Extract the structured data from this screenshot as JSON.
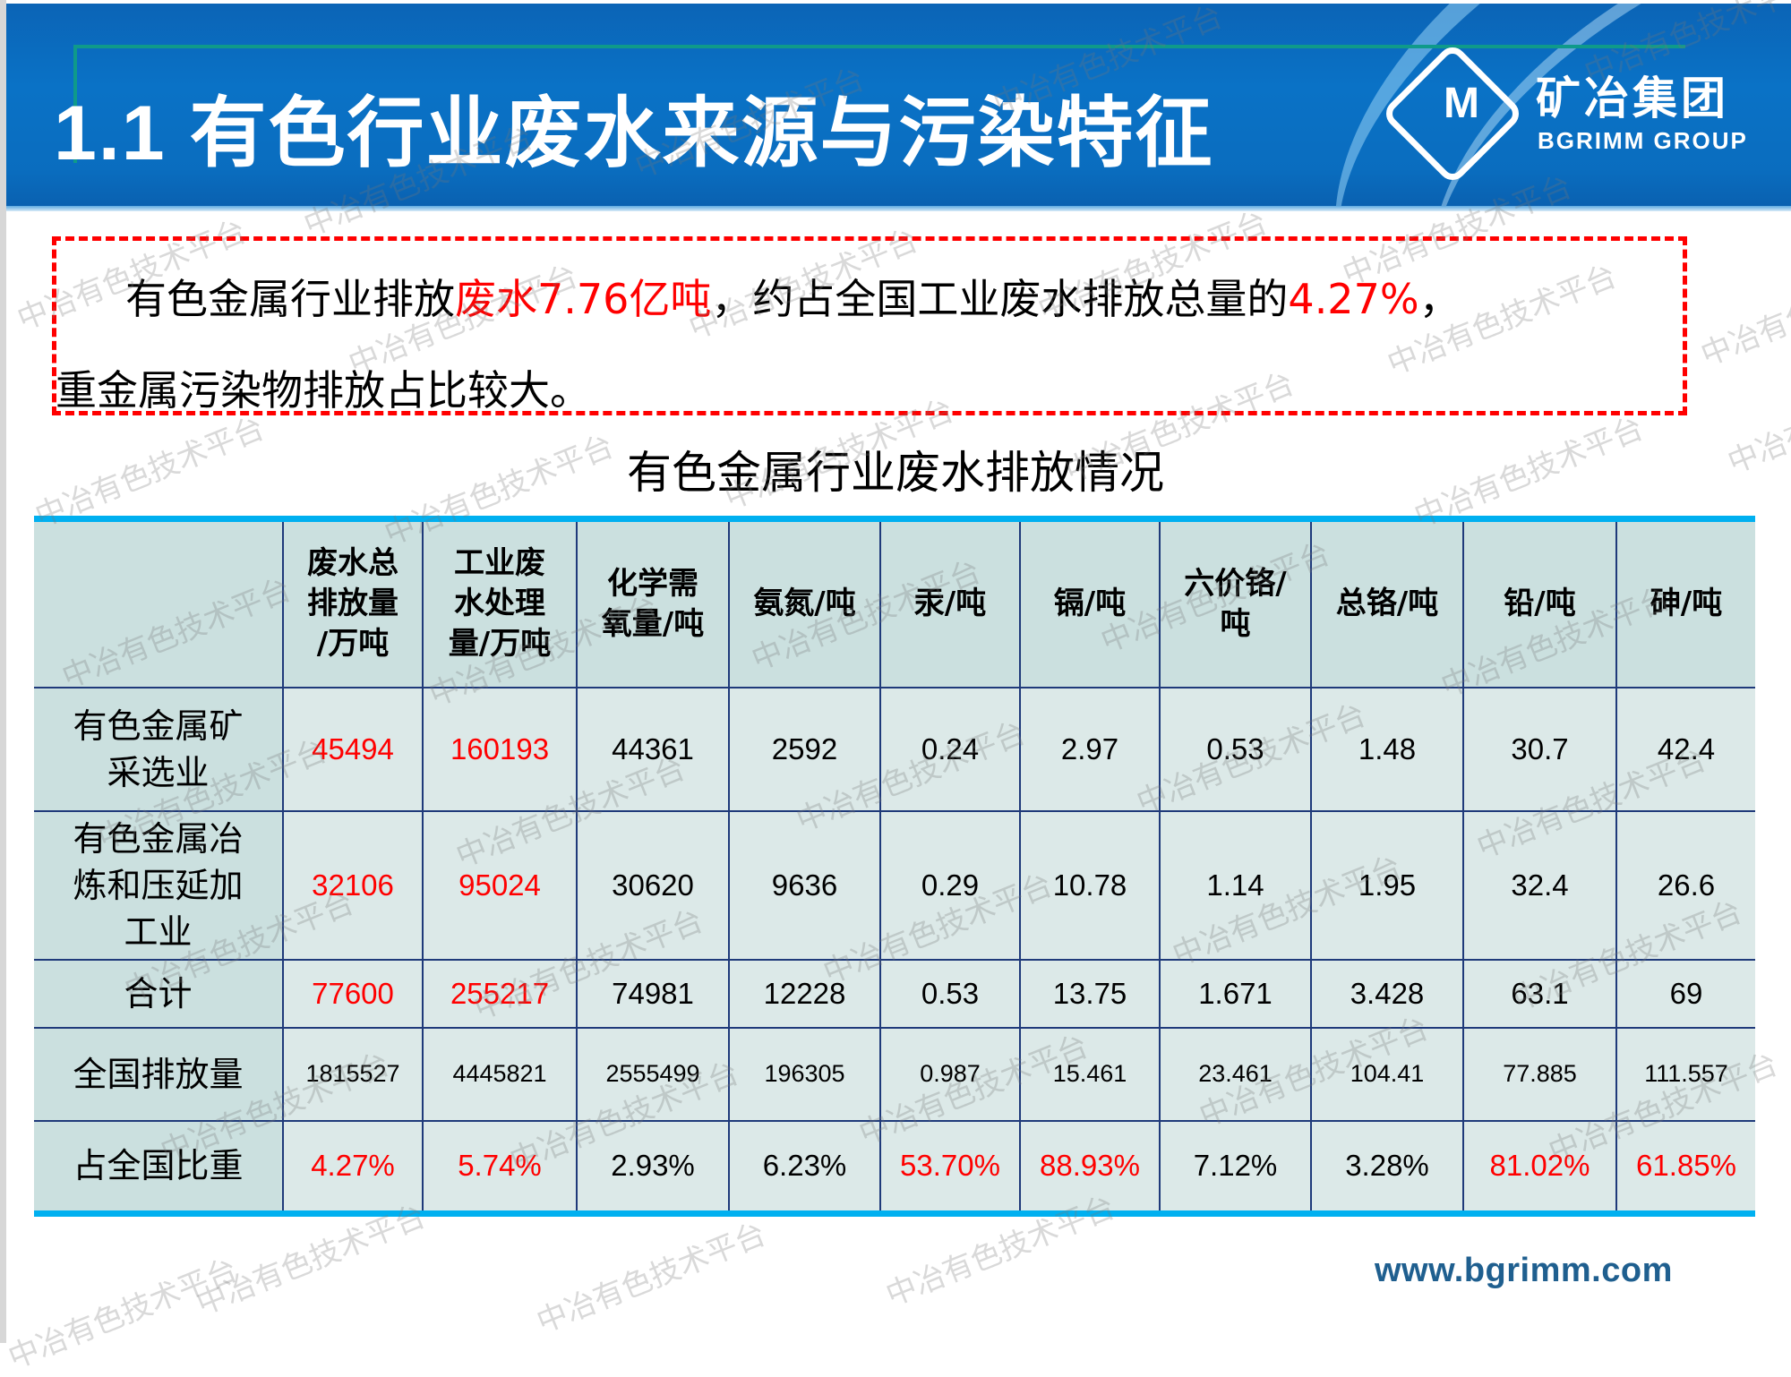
{
  "slide": {
    "title": "1.1 有色行业废水来源与污染特征",
    "logo": {
      "mark": "M",
      "name_cn": "矿冶集团",
      "name_en": "BGRIMM GROUP"
    },
    "footer_url": "www.bgrimm.com",
    "watermark": "中冶有色技术平台"
  },
  "callout": {
    "line1_prefix": "有色金属行业排放",
    "line1_highlight1": "废水7.76亿吨",
    "line1_middle": "，约占全国工业废水排放总量的",
    "line1_highlight2": "4.27%",
    "line1_suffix": "，",
    "line2": "重金属污染物排放占比较大。"
  },
  "table": {
    "title": "有色金属行业废水排放情况",
    "columns": [
      {
        "label": "",
        "lines": []
      },
      {
        "label": "废水总排放量/万吨",
        "lines": [
          "废水总",
          "排放量",
          "/万吨"
        ]
      },
      {
        "label": "工业废水处理量/万吨",
        "lines": [
          "工业废",
          "水处理",
          "量/万吨"
        ]
      },
      {
        "label": "化学需氧量/吨",
        "lines": [
          "化学需",
          "氧量/吨"
        ]
      },
      {
        "label": "氨氮/吨",
        "lines": [
          "氨氮/吨"
        ]
      },
      {
        "label": "汞/吨",
        "lines": [
          "汞/吨"
        ]
      },
      {
        "label": "镉/吨",
        "lines": [
          "镉/吨"
        ]
      },
      {
        "label": "六价铬/吨",
        "lines": [
          "六价铬/",
          "吨"
        ]
      },
      {
        "label": "总铬/吨",
        "lines": [
          "总铬/吨"
        ]
      },
      {
        "label": "铅/吨",
        "lines": [
          "铅/吨"
        ]
      },
      {
        "label": "砷/吨",
        "lines": [
          "砷/吨"
        ]
      }
    ],
    "rows": [
      {
        "label_lines": [
          "有色金属矿",
          "采选业"
        ],
        "values": [
          "45494",
          "160193",
          "44361",
          "2592",
          "0.24",
          "2.97",
          "0.53",
          "1.48",
          "30.7",
          "42.4"
        ],
        "highlight": [
          true,
          true,
          false,
          false,
          false,
          false,
          false,
          false,
          false,
          false
        ]
      },
      {
        "label_lines": [
          "有色金属冶",
          "炼和压延加",
          "工业"
        ],
        "values": [
          "32106",
          "95024",
          "30620",
          "9636",
          "0.29",
          "10.78",
          "1.14",
          "1.95",
          "32.4",
          "26.6"
        ],
        "highlight": [
          true,
          true,
          false,
          false,
          false,
          false,
          false,
          false,
          false,
          false
        ]
      },
      {
        "label_lines": [
          "合计"
        ],
        "values": [
          "77600",
          "255217",
          "74981",
          "12228",
          "0.53",
          "13.75",
          "1.671",
          "3.428",
          "63.1",
          "69"
        ],
        "highlight": [
          true,
          true,
          false,
          false,
          false,
          false,
          false,
          false,
          false,
          false
        ]
      },
      {
        "label_lines": [
          "全国排放量"
        ],
        "values": [
          "1815527",
          "4445821",
          "2555499",
          "196305",
          "0.987",
          "15.461",
          "23.461",
          "104.41",
          "77.885",
          "111.557"
        ],
        "highlight": [
          false,
          false,
          false,
          false,
          false,
          false,
          false,
          false,
          false,
          false
        ]
      },
      {
        "label_lines": [
          "占全国比重"
        ],
        "values": [
          "4.27%",
          "5.74%",
          "2.93%",
          "6.23%",
          "53.70%",
          "88.93%",
          "7.12%",
          "3.28%",
          "81.02%",
          "61.85%"
        ],
        "highlight": [
          true,
          true,
          false,
          false,
          true,
          true,
          false,
          false,
          true,
          true
        ]
      }
    ]
  },
  "colors": {
    "header_blue": "#0a6dbf",
    "accent_teal": "#0f9a8a",
    "highlight_red": "#ff0000",
    "table_rule_cyan": "#00b0f0",
    "table_border": "#1f3a7a",
    "header_cell_bg": "#cbe0df",
    "body_cell_bg": "#dce9e8"
  }
}
